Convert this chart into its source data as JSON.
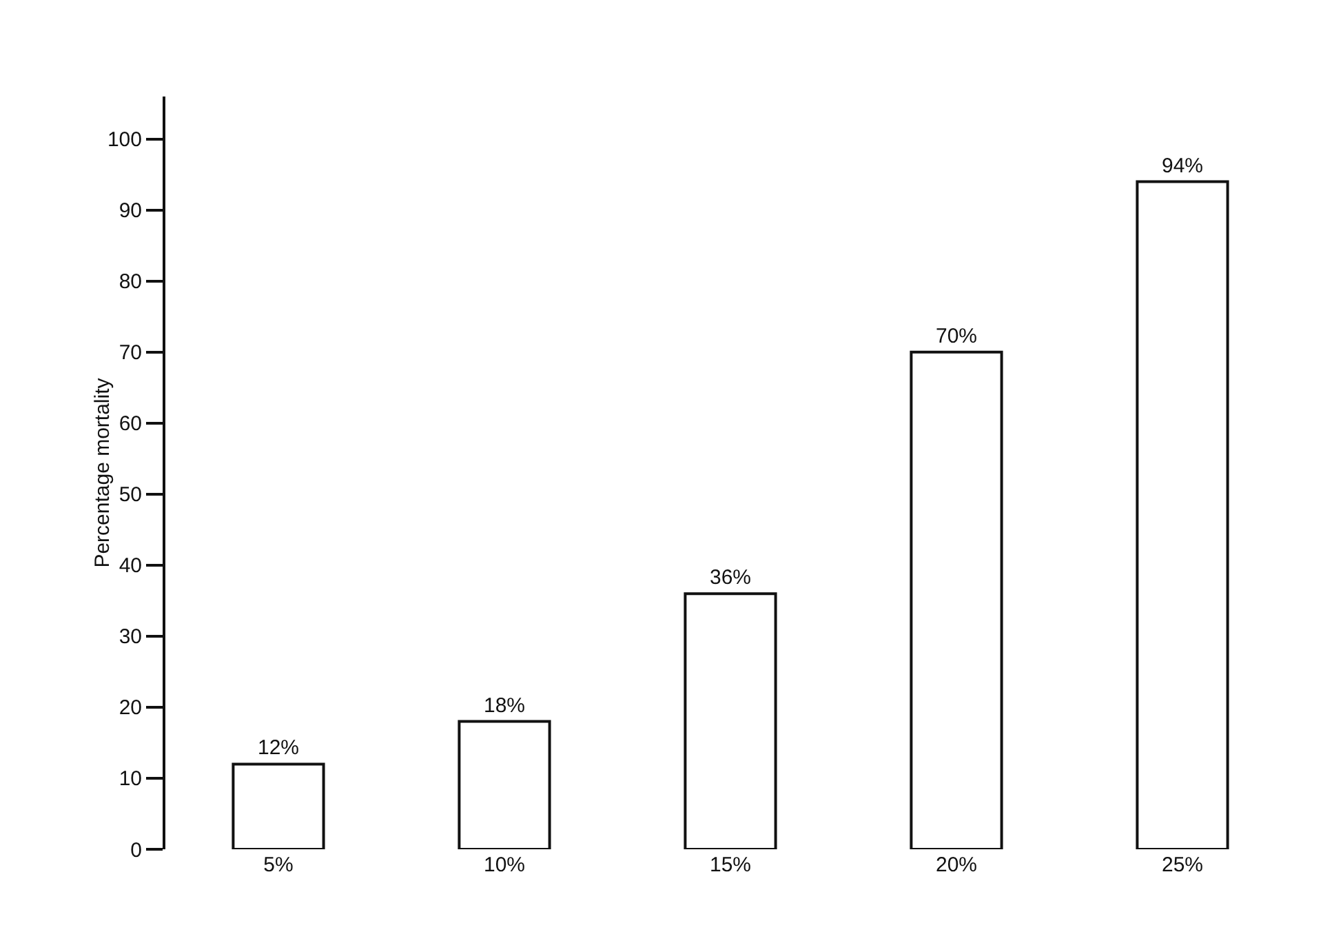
{
  "chart_data": {
    "type": "bar",
    "ylabel": "Percentage mortality",
    "categories": [
      "5%",
      "10%",
      "15%",
      "20%",
      "25%"
    ],
    "values": [
      12,
      18,
      36,
      70,
      94
    ],
    "value_labels": [
      "12%",
      "18%",
      "36%",
      "70%",
      "94%"
    ],
    "color": "#ffffff",
    "ylim": [
      0,
      106
    ],
    "yticks": [
      0,
      10,
      20,
      30,
      40,
      50,
      60,
      70,
      80,
      90,
      100
    ],
    "grid": false,
    "legend": false
  }
}
